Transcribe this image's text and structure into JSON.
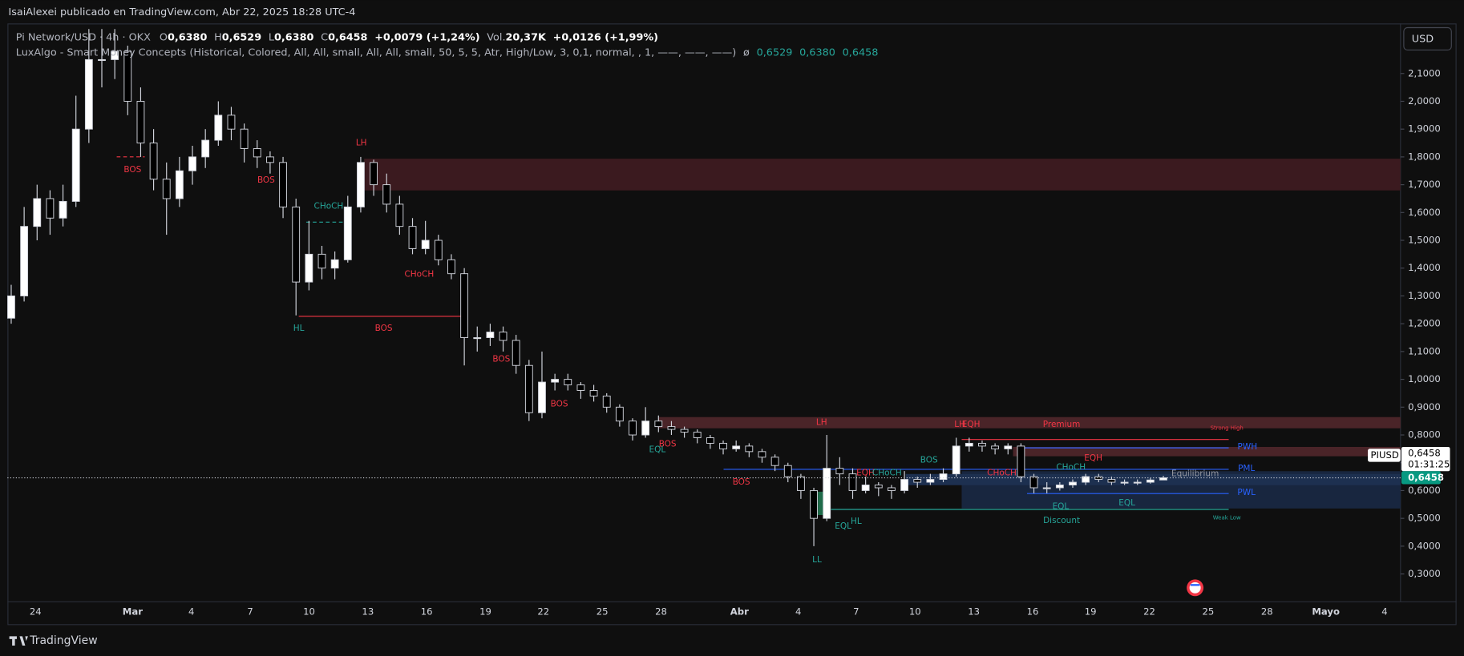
{
  "header": {
    "publisher": "IsaiAlexei publicado en TradingView.com, Abr 22, 2025 18:28 UTC-4"
  },
  "legend": {
    "symbol": "Pi Network/USD · 4h · OKX",
    "ohlc": [
      {
        "key": "O",
        "value": "0,6380"
      },
      {
        "key": "H",
        "value": "0,6529"
      },
      {
        "key": "L",
        "value": "0,6380"
      },
      {
        "key": "C",
        "value": "0,6458"
      }
    ],
    "change": "+0,0079 (+1,24%)",
    "volume_label": "Vol.",
    "volume": "20,37K",
    "volume_change": "+0,0126 (+1,99%)",
    "indicator": "LuxAlgo - Smart Money Concepts (Historical, Colored, All, All, small, All, All, small, 50, 5, 5, Atr, High/Low, 3, 0,1, normal, , 1, ——, ——, ——)",
    "indicator_symbol": "ø",
    "indicator_values": [
      "0,6529",
      "0,6380",
      "0,6458"
    ]
  },
  "currency_button": "USD",
  "price_tag": {
    "symbol": "PIUSD",
    "price": "0,6458",
    "countdown": "01:31:25",
    "last_price": "0,6458"
  },
  "chart": {
    "type": "candlestick",
    "ylim": [
      0.2,
      2.28
    ],
    "yticks": [
      {
        "value": 2.1,
        "label": "2,1000"
      },
      {
        "value": 2.0,
        "label": "2,0000"
      },
      {
        "value": 1.9,
        "label": "1,9000"
      },
      {
        "value": 1.8,
        "label": "1,8000"
      },
      {
        "value": 1.7,
        "label": "1,7000"
      },
      {
        "value": 1.6,
        "label": "1,6000"
      },
      {
        "value": 1.5,
        "label": "1,5000"
      },
      {
        "value": 1.4,
        "label": "1,4000"
      },
      {
        "value": 1.3,
        "label": "1,3000"
      },
      {
        "value": 1.2,
        "label": "1,2000"
      },
      {
        "value": 1.1,
        "label": "1,1000"
      },
      {
        "value": 1.0,
        "label": "1,0000"
      },
      {
        "value": 0.9,
        "label": "0,9000"
      },
      {
        "value": 0.8,
        "label": "0,8000"
      },
      {
        "value": 0.7,
        "label": "0,7000"
      },
      {
        "value": 0.6,
        "label": "0,6000"
      },
      {
        "value": 0.5,
        "label": "0,5000"
      },
      {
        "value": 0.4,
        "label": "0,4000"
      },
      {
        "value": 0.3,
        "label": "0,3000"
      }
    ],
    "xlabels": [
      "24",
      "Mar",
      "4",
      "7",
      "10",
      "13",
      "16",
      "19",
      "22",
      "25",
      "28",
      "Abr",
      "4",
      "7",
      "10",
      "13",
      "16",
      "19",
      "22",
      "25",
      "28",
      "Mayo",
      "4"
    ],
    "up_color": "#ffffff",
    "down_color": "#000000",
    "candles": [
      [
        1.22,
        1.34,
        1.2,
        1.3
      ],
      [
        1.3,
        1.62,
        1.28,
        1.55
      ],
      [
        1.55,
        1.7,
        1.5,
        1.65
      ],
      [
        1.65,
        1.68,
        1.52,
        1.58
      ],
      [
        1.58,
        1.7,
        1.55,
        1.64
      ],
      [
        1.64,
        2.02,
        1.62,
        1.9
      ],
      [
        1.9,
        2.26,
        1.85,
        2.15
      ],
      [
        2.15,
        2.26,
        2.05,
        2.15
      ],
      [
        2.15,
        2.26,
        2.08,
        2.18
      ],
      [
        2.18,
        2.2,
        1.95,
        2.0
      ],
      [
        2.0,
        2.05,
        1.8,
        1.85
      ],
      [
        1.85,
        1.9,
        1.68,
        1.72
      ],
      [
        1.72,
        1.78,
        1.52,
        1.65
      ],
      [
        1.65,
        1.8,
        1.62,
        1.75
      ],
      [
        1.75,
        1.84,
        1.7,
        1.8
      ],
      [
        1.8,
        1.9,
        1.76,
        1.86
      ],
      [
        1.86,
        2.0,
        1.84,
        1.95
      ],
      [
        1.95,
        1.98,
        1.86,
        1.9
      ],
      [
        1.9,
        1.92,
        1.78,
        1.83
      ],
      [
        1.83,
        1.86,
        1.76,
        1.8
      ],
      [
        1.8,
        1.82,
        1.74,
        1.78
      ],
      [
        1.78,
        1.8,
        1.58,
        1.62
      ],
      [
        1.62,
        1.65,
        1.23,
        1.35
      ],
      [
        1.35,
        1.57,
        1.32,
        1.45
      ],
      [
        1.45,
        1.48,
        1.36,
        1.4
      ],
      [
        1.4,
        1.46,
        1.36,
        1.43
      ],
      [
        1.43,
        1.66,
        1.42,
        1.62
      ],
      [
        1.62,
        1.8,
        1.6,
        1.78
      ],
      [
        1.78,
        1.79,
        1.66,
        1.7
      ],
      [
        1.7,
        1.74,
        1.6,
        1.63
      ],
      [
        1.63,
        1.66,
        1.52,
        1.55
      ],
      [
        1.55,
        1.58,
        1.45,
        1.47
      ],
      [
        1.47,
        1.57,
        1.45,
        1.5
      ],
      [
        1.5,
        1.52,
        1.41,
        1.43
      ],
      [
        1.43,
        1.45,
        1.36,
        1.38
      ],
      [
        1.38,
        1.4,
        1.05,
        1.15
      ],
      [
        1.15,
        1.19,
        1.1,
        1.15
      ],
      [
        1.15,
        1.2,
        1.12,
        1.17
      ],
      [
        1.17,
        1.19,
        1.1,
        1.14
      ],
      [
        1.14,
        1.16,
        1.02,
        1.05
      ],
      [
        1.05,
        1.07,
        0.85,
        0.88
      ],
      [
        0.88,
        1.1,
        0.86,
        0.99
      ],
      [
        0.99,
        1.02,
        0.96,
        1.0
      ],
      [
        1.0,
        1.02,
        0.96,
        0.98
      ],
      [
        0.98,
        0.99,
        0.93,
        0.96
      ],
      [
        0.96,
        0.98,
        0.92,
        0.94
      ],
      [
        0.94,
        0.95,
        0.88,
        0.9
      ],
      [
        0.9,
        0.91,
        0.83,
        0.85
      ],
      [
        0.85,
        0.86,
        0.78,
        0.8
      ],
      [
        0.8,
        0.9,
        0.79,
        0.85
      ],
      [
        0.85,
        0.87,
        0.81,
        0.83
      ],
      [
        0.83,
        0.85,
        0.8,
        0.82
      ],
      [
        0.82,
        0.83,
        0.79,
        0.81
      ],
      [
        0.81,
        0.82,
        0.77,
        0.79
      ],
      [
        0.79,
        0.8,
        0.75,
        0.77
      ],
      [
        0.77,
        0.78,
        0.73,
        0.75
      ],
      [
        0.75,
        0.78,
        0.74,
        0.76
      ],
      [
        0.76,
        0.77,
        0.72,
        0.74
      ],
      [
        0.74,
        0.75,
        0.7,
        0.72
      ],
      [
        0.72,
        0.73,
        0.67,
        0.69
      ],
      [
        0.69,
        0.7,
        0.63,
        0.65
      ],
      [
        0.65,
        0.66,
        0.57,
        0.6
      ],
      [
        0.6,
        0.61,
        0.4,
        0.5
      ],
      [
        0.5,
        0.8,
        0.49,
        0.68
      ],
      [
        0.68,
        0.72,
        0.62,
        0.66
      ],
      [
        0.66,
        0.68,
        0.57,
        0.6
      ],
      [
        0.6,
        0.65,
        0.59,
        0.62
      ],
      [
        0.62,
        0.63,
        0.58,
        0.61
      ],
      [
        0.61,
        0.62,
        0.57,
        0.6
      ],
      [
        0.6,
        0.67,
        0.59,
        0.64
      ],
      [
        0.64,
        0.65,
        0.61,
        0.63
      ],
      [
        0.63,
        0.66,
        0.62,
        0.64
      ],
      [
        0.64,
        0.68,
        0.63,
        0.66
      ],
      [
        0.66,
        0.79,
        0.65,
        0.76
      ],
      [
        0.76,
        0.79,
        0.74,
        0.77
      ],
      [
        0.77,
        0.78,
        0.74,
        0.76
      ],
      [
        0.76,
        0.77,
        0.73,
        0.75
      ],
      [
        0.75,
        0.77,
        0.73,
        0.76
      ],
      [
        0.76,
        0.77,
        0.63,
        0.65
      ],
      [
        0.65,
        0.66,
        0.59,
        0.61
      ],
      [
        0.61,
        0.63,
        0.59,
        0.61
      ],
      [
        0.61,
        0.63,
        0.6,
        0.62
      ],
      [
        0.62,
        0.64,
        0.61,
        0.63
      ],
      [
        0.63,
        0.66,
        0.62,
        0.65
      ],
      [
        0.65,
        0.66,
        0.63,
        0.64
      ],
      [
        0.64,
        0.65,
        0.62,
        0.63
      ],
      [
        0.63,
        0.64,
        0.62,
        0.63
      ],
      [
        0.63,
        0.64,
        0.62,
        0.63
      ],
      [
        0.63,
        0.645,
        0.625,
        0.638
      ],
      [
        0.638,
        0.6529,
        0.638,
        0.6458
      ]
    ],
    "annotations": [
      "BOS",
      "BOS",
      "LH",
      "CHoCH",
      "HL",
      "BOS",
      "CHoCH",
      "BOS",
      "BOS",
      "LH",
      "BOS",
      "EQL",
      "BOS",
      "EQH",
      "CHoCH",
      "HL",
      "EQL",
      "LL",
      "BOS",
      "LH",
      "EQH",
      "Premium",
      "Strong High",
      "PWH",
      "EQH",
      "CHoCH",
      "CHoCH",
      "Equilibrium",
      "PML",
      "PWL",
      "EQL",
      "EQL",
      "Discount",
      "Weak Low"
    ]
  },
  "footer": {
    "brand": "TradingView"
  }
}
